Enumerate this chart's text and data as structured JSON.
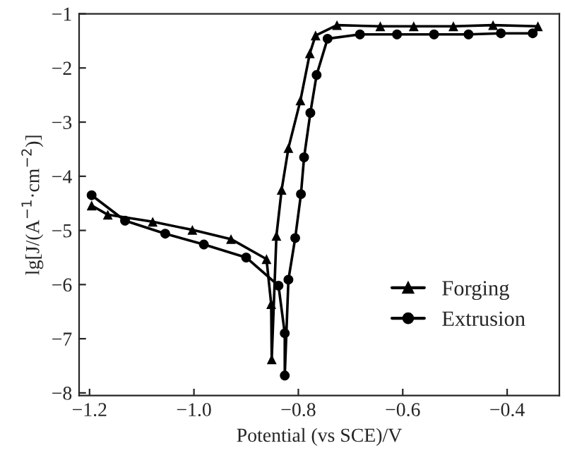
{
  "chart_data": {
    "type": "line",
    "xlabel": "Potential (vs SCE)/V",
    "ylabel": "lg[J/(A$^{−1}$·cm$^{−2}$)]",
    "xlim": [
      -1.22,
      -0.3
    ],
    "ylim": [
      -8.05,
      -1
    ],
    "xticks": [
      {
        "value": -1.2,
        "label": "−1.2"
      },
      {
        "value": -1.0,
        "label": "−1.0"
      },
      {
        "value": -0.8,
        "label": "−0.8"
      },
      {
        "value": -0.6,
        "label": "−0.6"
      },
      {
        "value": -0.4,
        "label": "−0.4"
      }
    ],
    "yticks": [
      {
        "value": -8,
        "label": "−8"
      },
      {
        "value": -7,
        "label": "−7"
      },
      {
        "value": -6,
        "label": "−6"
      },
      {
        "value": -5,
        "label": "−5"
      },
      {
        "value": -4,
        "label": "−4"
      },
      {
        "value": -3,
        "label": "−3"
      },
      {
        "value": -2,
        "label": "−2"
      },
      {
        "value": -1,
        "label": "−1"
      }
    ],
    "grid": false,
    "legend": "bottom right",
    "line_style": "solid",
    "series": [
      {
        "name": "Forging",
        "color": "#000000",
        "marker": "triangle",
        "x": [
          -1.196,
          -1.165,
          -1.079,
          -1.003,
          -0.929,
          -0.861,
          -0.852,
          -0.851,
          -0.842,
          -0.832,
          -0.819,
          -0.796,
          -0.778,
          -0.767,
          -0.726,
          -0.643,
          -0.579,
          -0.503,
          -0.427,
          -0.341
        ],
        "values": [
          -4.54,
          -4.71,
          -4.84,
          -4.99,
          -5.16,
          -5.53,
          -6.36,
          -7.38,
          -5.1,
          -4.25,
          -3.48,
          -2.6,
          -1.73,
          -1.4,
          -1.21,
          -1.23,
          -1.23,
          -1.23,
          -1.21,
          -1.23
        ]
      },
      {
        "name": "Extrusion",
        "color": "#000000",
        "marker": "circle",
        "x": [
          -1.196,
          -1.132,
          -1.055,
          -0.981,
          -0.9,
          -0.838,
          -0.826,
          -0.826,
          -0.819,
          -0.806,
          -0.795,
          -0.789,
          -0.777,
          -0.765,
          -0.744,
          -0.682,
          -0.611,
          -0.54,
          -0.474,
          -0.412,
          -0.351
        ],
        "values": [
          -4.35,
          -4.82,
          -5.06,
          -5.26,
          -5.5,
          -6.02,
          -6.9,
          -7.68,
          -5.91,
          -5.14,
          -4.33,
          -3.65,
          -2.83,
          -2.13,
          -1.46,
          -1.38,
          -1.38,
          -1.38,
          -1.38,
          -1.36,
          -1.36
        ]
      }
    ]
  }
}
